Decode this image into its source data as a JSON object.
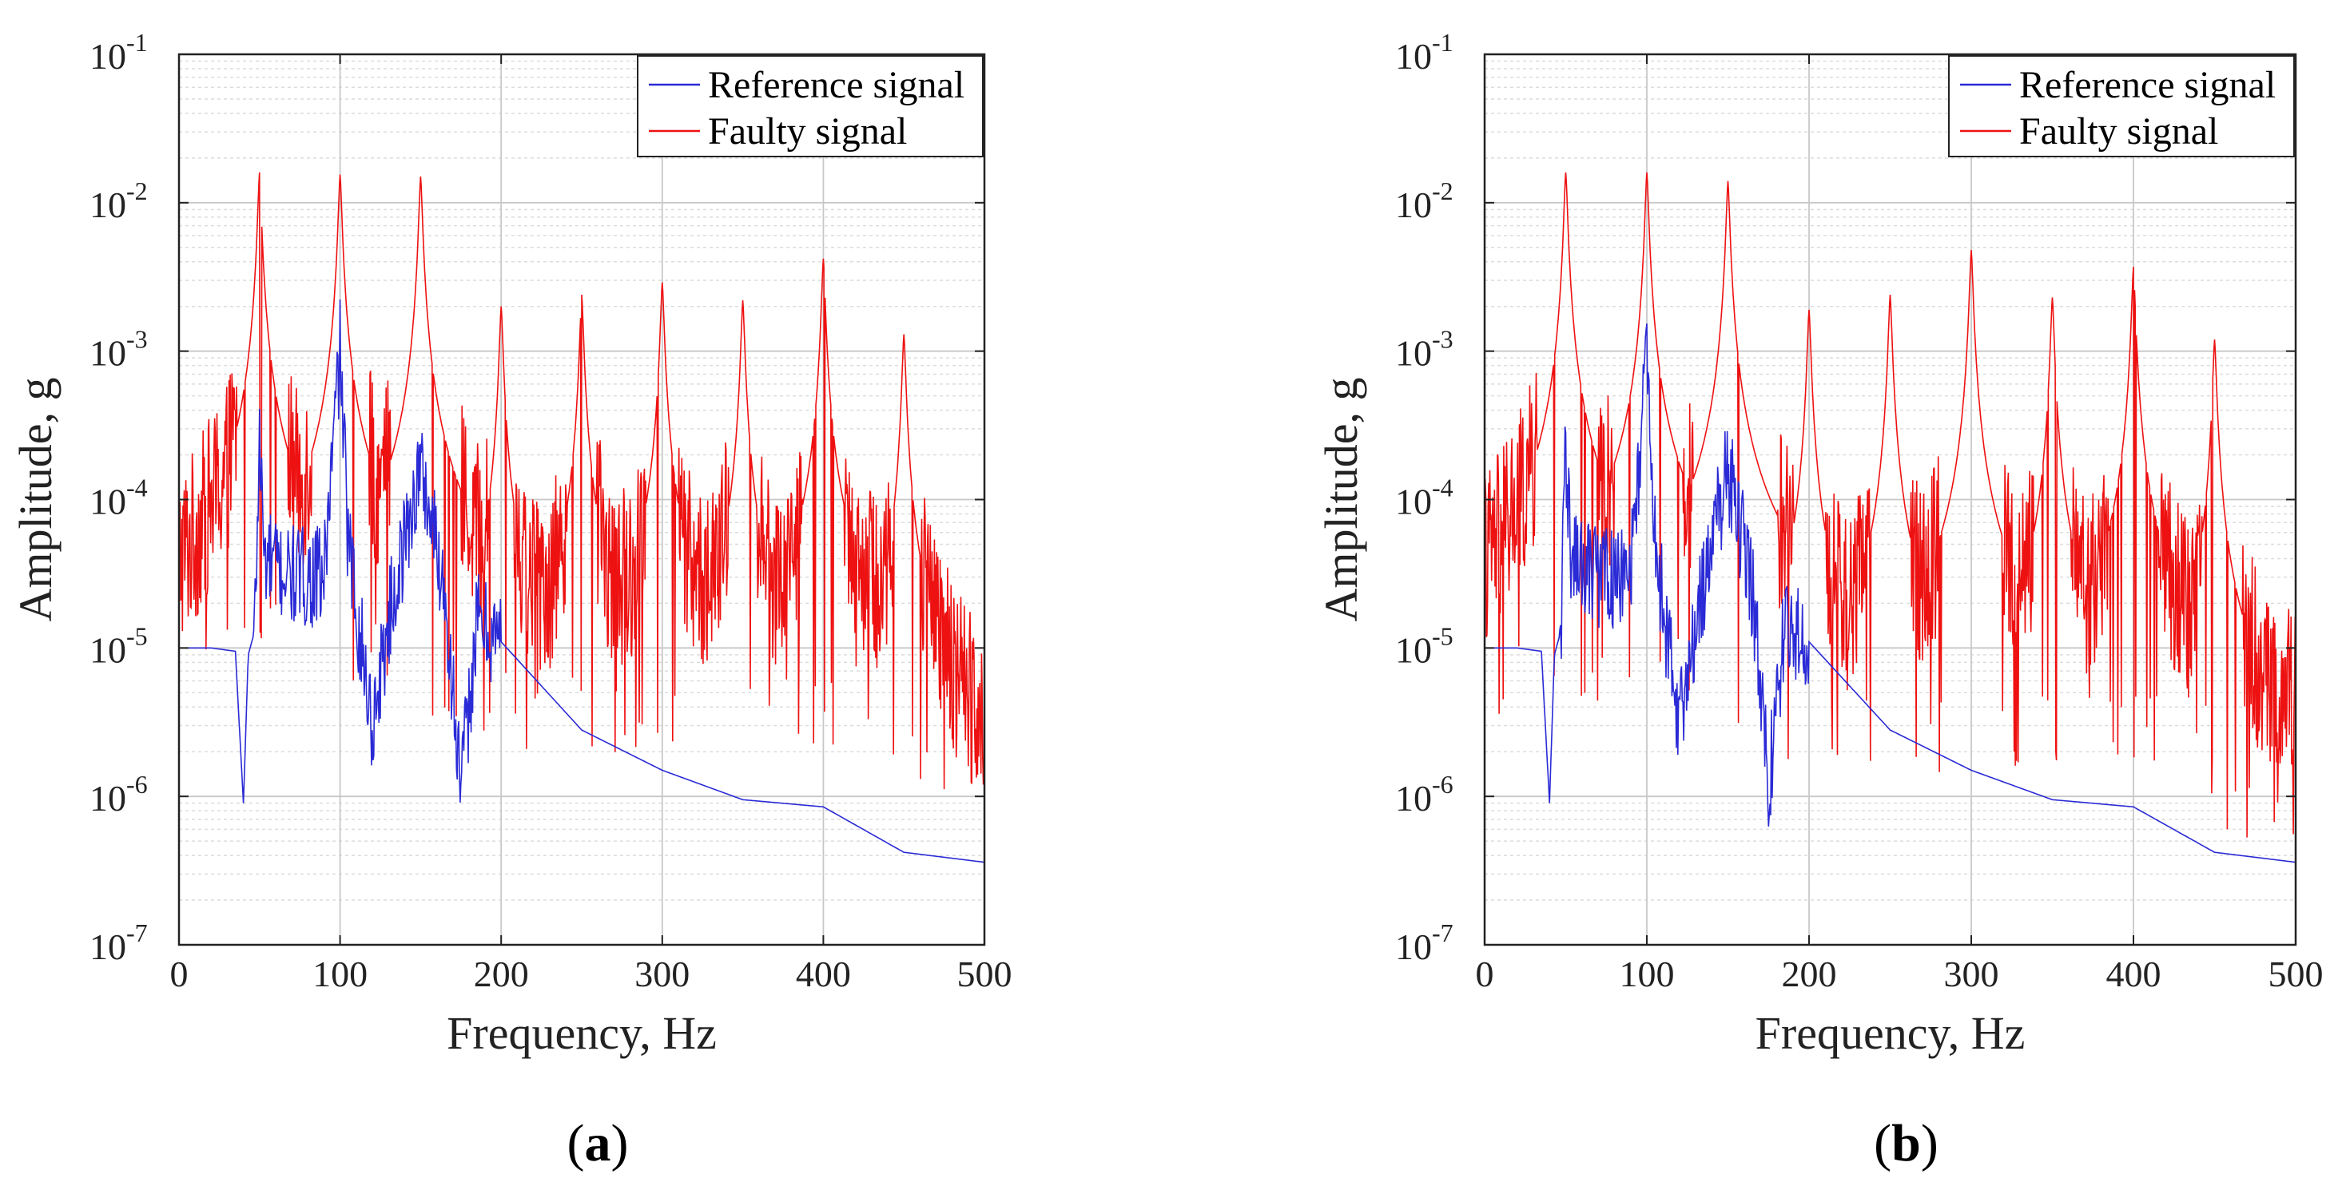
{
  "chart_data": [
    {
      "type": "line",
      "panel_label": "a",
      "xlabel": "Frequency, Hz",
      "ylabel": "Amplitude, g",
      "xlim": [
        0,
        500
      ],
      "ylim_exponents": [
        -7,
        -1
      ],
      "yscale": "log",
      "grid": true,
      "legend_position": "top-right",
      "x_ticks": [
        "0",
        "100",
        "200",
        "300",
        "400",
        "500"
      ],
      "y_ticks": [
        {
          "base": "10",
          "exp": "-7"
        },
        {
          "base": "10",
          "exp": "-6"
        },
        {
          "base": "10",
          "exp": "-5"
        },
        {
          "base": "10",
          "exp": "-4"
        },
        {
          "base": "10",
          "exp": "-3"
        },
        {
          "base": "10",
          "exp": "-2"
        },
        {
          "base": "10",
          "exp": "-1"
        }
      ],
      "series": [
        {
          "name": "Reference signal",
          "color": "#2a2ad6",
          "points": [
            [
              0,
              1e-05
            ],
            [
              20,
              1e-05
            ],
            [
              35,
              9.5e-06
            ],
            [
              40,
              9e-07
            ],
            [
              43,
              9e-06
            ],
            [
              47,
              1.3e-05
            ],
            [
              50,
              0.00026
            ],
            [
              53,
              4e-05
            ],
            [
              70,
              3e-05
            ],
            [
              90,
              3e-05
            ],
            [
              100,
              0.00105
            ],
            [
              105,
              5e-05
            ],
            [
              120,
              3e-06
            ],
            [
              130,
              1.5e-05
            ],
            [
              150,
              0.00017
            ],
            [
              165,
              2.5e-05
            ],
            [
              175,
              1.1e-06
            ],
            [
              185,
              1.5e-05
            ],
            [
              200,
              1.1e-05
            ],
            [
              250,
              2.8e-06
            ],
            [
              300,
              1.5e-06
            ],
            [
              350,
              9.5e-07
            ],
            [
              400,
              8.5e-07
            ],
            [
              450,
              4.2e-07
            ],
            [
              500,
              3.6e-07
            ]
          ]
        },
        {
          "name": "Faulty signal",
          "color": "#ee1111",
          "baseline": [
            [
              0,
              3e-05
            ],
            [
              20,
              0.0001
            ],
            [
              40,
              0.0001
            ],
            [
              70,
              7e-05
            ],
            [
              120,
              7e-05
            ],
            [
              170,
              4e-05
            ],
            [
              200,
              3e-05
            ],
            [
              250,
              3e-05
            ],
            [
              300,
              3e-05
            ],
            [
              350,
              3e-05
            ],
            [
              400,
              3e-05
            ],
            [
              445,
              3e-05
            ],
            [
              470,
              8e-06
            ],
            [
              500,
              4e-06
            ]
          ],
          "peaks": [
            [
              50,
              0.016
            ],
            [
              100,
              0.0155
            ],
            [
              150,
              0.015
            ],
            [
              200,
              0.002
            ],
            [
              250,
              0.0024
            ],
            [
              300,
              0.0029
            ],
            [
              350,
              0.0022
            ],
            [
              400,
              0.0042
            ],
            [
              450,
              0.0013
            ]
          ]
        }
      ]
    },
    {
      "type": "line",
      "panel_label": "b",
      "xlabel": "Frequency, Hz",
      "ylabel": "Amplitude, g",
      "xlim": [
        0,
        500
      ],
      "ylim_exponents": [
        -7,
        -1
      ],
      "yscale": "log",
      "grid": true,
      "legend_position": "top-right",
      "x_ticks": [
        "0",
        "100",
        "200",
        "300",
        "400",
        "500"
      ],
      "y_ticks": [
        {
          "base": "10",
          "exp": "-7"
        },
        {
          "base": "10",
          "exp": "-6"
        },
        {
          "base": "10",
          "exp": "-5"
        },
        {
          "base": "10",
          "exp": "-4"
        },
        {
          "base": "10",
          "exp": "-3"
        },
        {
          "base": "10",
          "exp": "-2"
        },
        {
          "base": "10",
          "exp": "-1"
        }
      ],
      "series": [
        {
          "name": "Reference signal",
          "color": "#2a2ad6",
          "points": [
            [
              0,
              1e-05
            ],
            [
              20,
              1e-05
            ],
            [
              35,
              9.5e-06
            ],
            [
              40,
              9e-07
            ],
            [
              43,
              9e-06
            ],
            [
              47,
              1.3e-05
            ],
            [
              50,
              0.00026
            ],
            [
              53,
              4e-05
            ],
            [
              70,
              3e-05
            ],
            [
              90,
              3e-05
            ],
            [
              100,
              0.001
            ],
            [
              105,
              5e-05
            ],
            [
              120,
              3e-06
            ],
            [
              130,
              1.5e-05
            ],
            [
              150,
              0.00016
            ],
            [
              165,
              2.5e-05
            ],
            [
              175,
              1.1e-06
            ],
            [
              185,
              1.5e-05
            ],
            [
              200,
              1.1e-05
            ],
            [
              250,
              2.8e-06
            ],
            [
              300,
              1.5e-06
            ],
            [
              350,
              9.5e-07
            ],
            [
              400,
              8.5e-07
            ],
            [
              450,
              4.2e-07
            ],
            [
              500,
              3.6e-07
            ]
          ]
        },
        {
          "name": "Faulty signal",
          "color": "#ee1111",
          "baseline": [
            [
              0,
              3e-05
            ],
            [
              20,
              7e-05
            ],
            [
              40,
              7e-05
            ],
            [
              70,
              6e-05
            ],
            [
              120,
              5e-05
            ],
            [
              170,
              3e-05
            ],
            [
              200,
              2e-05
            ],
            [
              250,
              1.8e-05
            ],
            [
              300,
              1.8e-05
            ],
            [
              350,
              2e-05
            ],
            [
              400,
              2e-05
            ],
            [
              445,
              2e-05
            ],
            [
              455,
              6e-06
            ],
            [
              500,
              4.5e-06
            ]
          ],
          "peaks": [
            [
              50,
              0.016
            ],
            [
              100,
              0.016
            ],
            [
              150,
              0.014
            ],
            [
              200,
              0.0019
            ],
            [
              250,
              0.0024
            ],
            [
              300,
              0.0048
            ],
            [
              350,
              0.0023
            ],
            [
              400,
              0.0037
            ],
            [
              450,
              0.0012
            ]
          ]
        }
      ]
    }
  ]
}
